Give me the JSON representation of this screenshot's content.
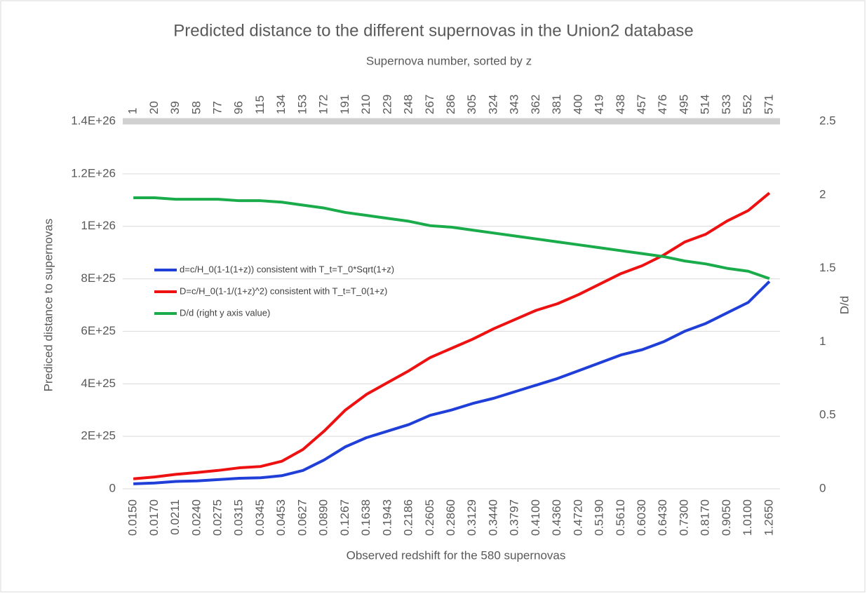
{
  "chart_data": {
    "type": "line",
    "title": "Predicted distance to the different supernovas in the Union2 database",
    "x_label": "Observed redshift for the 580 supernovas",
    "top_x_label": "Supernova number, sorted by z",
    "y_label": "Prediced distance to supernovas",
    "y2_label": "D/d",
    "categories": [
      "0.0150",
      "0.0170",
      "0.0211",
      "0.0240",
      "0.0275",
      "0.0315",
      "0.0345",
      "0.0453",
      "0.0627",
      "0.0890",
      "0.1267",
      "0.1638",
      "0.1943",
      "0.2186",
      "0.2605",
      "0.2860",
      "0.3129",
      "0.3440",
      "0.3797",
      "0.4100",
      "0.4360",
      "0.4720",
      "0.5190",
      "0.5610",
      "0.6030",
      "0.6430",
      "0.7300",
      "0.8170",
      "0.9050",
      "1.0100",
      "1.2650"
    ],
    "top_categories": [
      1,
      20,
      39,
      58,
      77,
      96,
      115,
      134,
      153,
      172,
      191,
      210,
      229,
      248,
      267,
      286,
      305,
      324,
      343,
      362,
      381,
      400,
      419,
      438,
      457,
      476,
      495,
      514,
      533,
      552,
      571
    ],
    "ylim": [
      0,
      1.4e+26
    ],
    "yticks": [
      0,
      {
        "value": 2e+25,
        "label": "2E+25"
      },
      {
        "value": 4e+25,
        "label": "4E+25"
      },
      {
        "value": 6e+25,
        "label": "6E+25"
      },
      {
        "value": 8e+25,
        "label": "8E+25"
      },
      {
        "value": 1e+26,
        "label": "1E+26"
      },
      {
        "value": 1.2e+26,
        "label": "1.2E+26"
      },
      {
        "value": 1.4e+26,
        "label": "1.4E+26"
      }
    ],
    "y2lim": [
      0,
      2.5
    ],
    "y2ticks": [
      0,
      0.5,
      1,
      1.5,
      2,
      2.5
    ],
    "grid": true,
    "series": [
      {
        "name": "d=c/H_0(1-1(1+z)) consistent with T_t=T_0*Sqrt(1+z)",
        "color": "#1f3fd8",
        "values": [
          1.9e+24,
          2.2e+24,
          2.8e+24,
          3e+24,
          3.5e+24,
          4e+24,
          4.2e+24,
          5e+24,
          7e+24,
          1.1e+25,
          1.6e+25,
          1.95e+25,
          2.2e+25,
          2.45e+25,
          2.8e+25,
          3e+25,
          3.25e+25,
          3.45e+25,
          3.7e+25,
          3.95e+25,
          4.2e+25,
          4.5e+25,
          4.8e+25,
          5.1e+25,
          5.3e+25,
          5.6e+25,
          6e+25,
          6.3e+25,
          6.7e+25,
          7.1e+25,
          7.9e+25
        ]
      },
      {
        "name": "D=c/H_0(1-1/(1+z)^2) consistent with T_t=T_0(1+z)",
        "color": "#ee1111",
        "values": [
          3.8e+24,
          4.5e+24,
          5.5e+24,
          6.2e+24,
          7e+24,
          8e+24,
          8.5e+24,
          1.05e+25,
          1.5e+25,
          2.2e+25,
          3e+25,
          3.6e+25,
          4.05e+25,
          4.5e+25,
          5e+25,
          5.35e+25,
          5.7e+25,
          6.1e+25,
          6.45e+25,
          6.8e+25,
          7.05e+25,
          7.4e+25,
          7.8e+25,
          8.2e+25,
          8.5e+25,
          8.9e+25,
          9.4e+25,
          9.7e+25,
          1.02e+26,
          1.06e+26,
          1.127e+26
        ]
      },
      {
        "name": "D/d (right y axis value)",
        "color": "#1aab4b",
        "axis": "y2",
        "values": [
          1.98,
          1.98,
          1.97,
          1.97,
          1.97,
          1.96,
          1.96,
          1.95,
          1.93,
          1.91,
          1.88,
          1.86,
          1.84,
          1.82,
          1.79,
          1.78,
          1.76,
          1.74,
          1.72,
          1.7,
          1.68,
          1.66,
          1.64,
          1.62,
          1.6,
          1.58,
          1.55,
          1.53,
          1.5,
          1.48,
          1.43
        ]
      }
    ]
  }
}
